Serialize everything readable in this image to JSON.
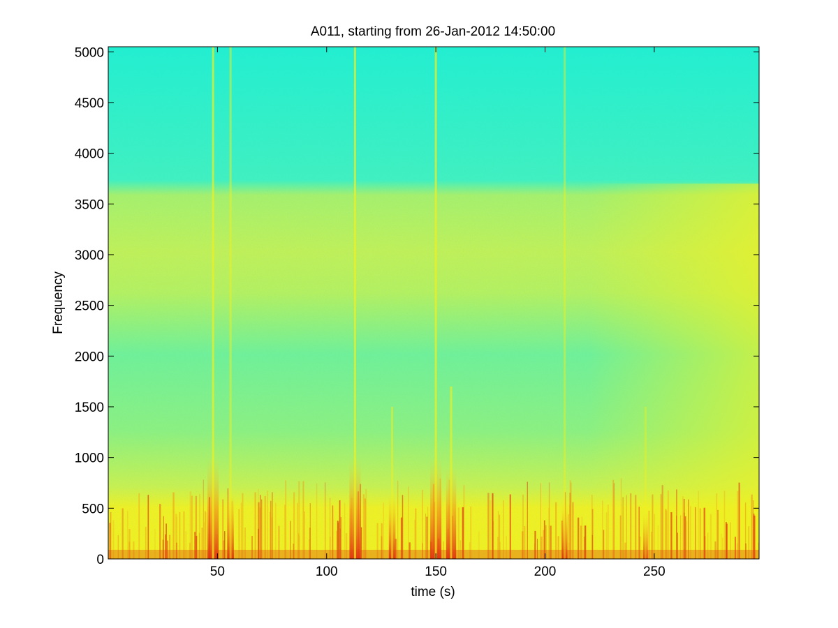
{
  "chart_data": {
    "type": "heatmap",
    "title": "A011, starting from 26-Jan-2012 14:50:00",
    "xlabel": "time (s)",
    "ylabel": "Frequency",
    "xlim": [
      0,
      298
    ],
    "ylim": [
      0,
      5050
    ],
    "x_ticks": [
      50,
      100,
      150,
      200,
      250
    ],
    "y_ticks": [
      0,
      500,
      1000,
      1500,
      2000,
      2500,
      3000,
      3500,
      4000,
      4500,
      5000
    ],
    "colormap": "jet",
    "colors": {
      "background_high": "#22efd0",
      "mid": "#66f0a0",
      "band": "#c8f050",
      "low": "#f0f020",
      "hot": "#e03010",
      "axis": "#000000"
    },
    "energy_bands": [
      {
        "from_hz": 0,
        "to_hz": 700,
        "level": "high"
      },
      {
        "from_hz": 700,
        "to_hz": 1500,
        "level": "elevated"
      },
      {
        "from_hz": 1500,
        "to_hz": 2500,
        "level": "moderate"
      },
      {
        "from_hz": 2500,
        "to_hz": 3600,
        "level": "moderate-elevated"
      },
      {
        "from_hz": 3600,
        "to_hz": 5050,
        "level": "background"
      }
    ],
    "broadband_events": [
      {
        "time_s": 48,
        "max_hz": 5050,
        "strength": 1.0
      },
      {
        "time_s": 56,
        "max_hz": 5050,
        "strength": 0.6
      },
      {
        "time_s": 113,
        "max_hz": 5050,
        "strength": 1.0
      },
      {
        "time_s": 130,
        "max_hz": 1500,
        "strength": 0.6
      },
      {
        "time_s": 150,
        "max_hz": 5050,
        "strength": 1.0
      },
      {
        "time_s": 157,
        "max_hz": 1700,
        "strength": 0.9
      },
      {
        "time_s": 209,
        "max_hz": 5050,
        "strength": 0.5
      },
      {
        "time_s": 246,
        "max_hz": 1500,
        "strength": 0.4
      }
    ],
    "grid": false
  }
}
